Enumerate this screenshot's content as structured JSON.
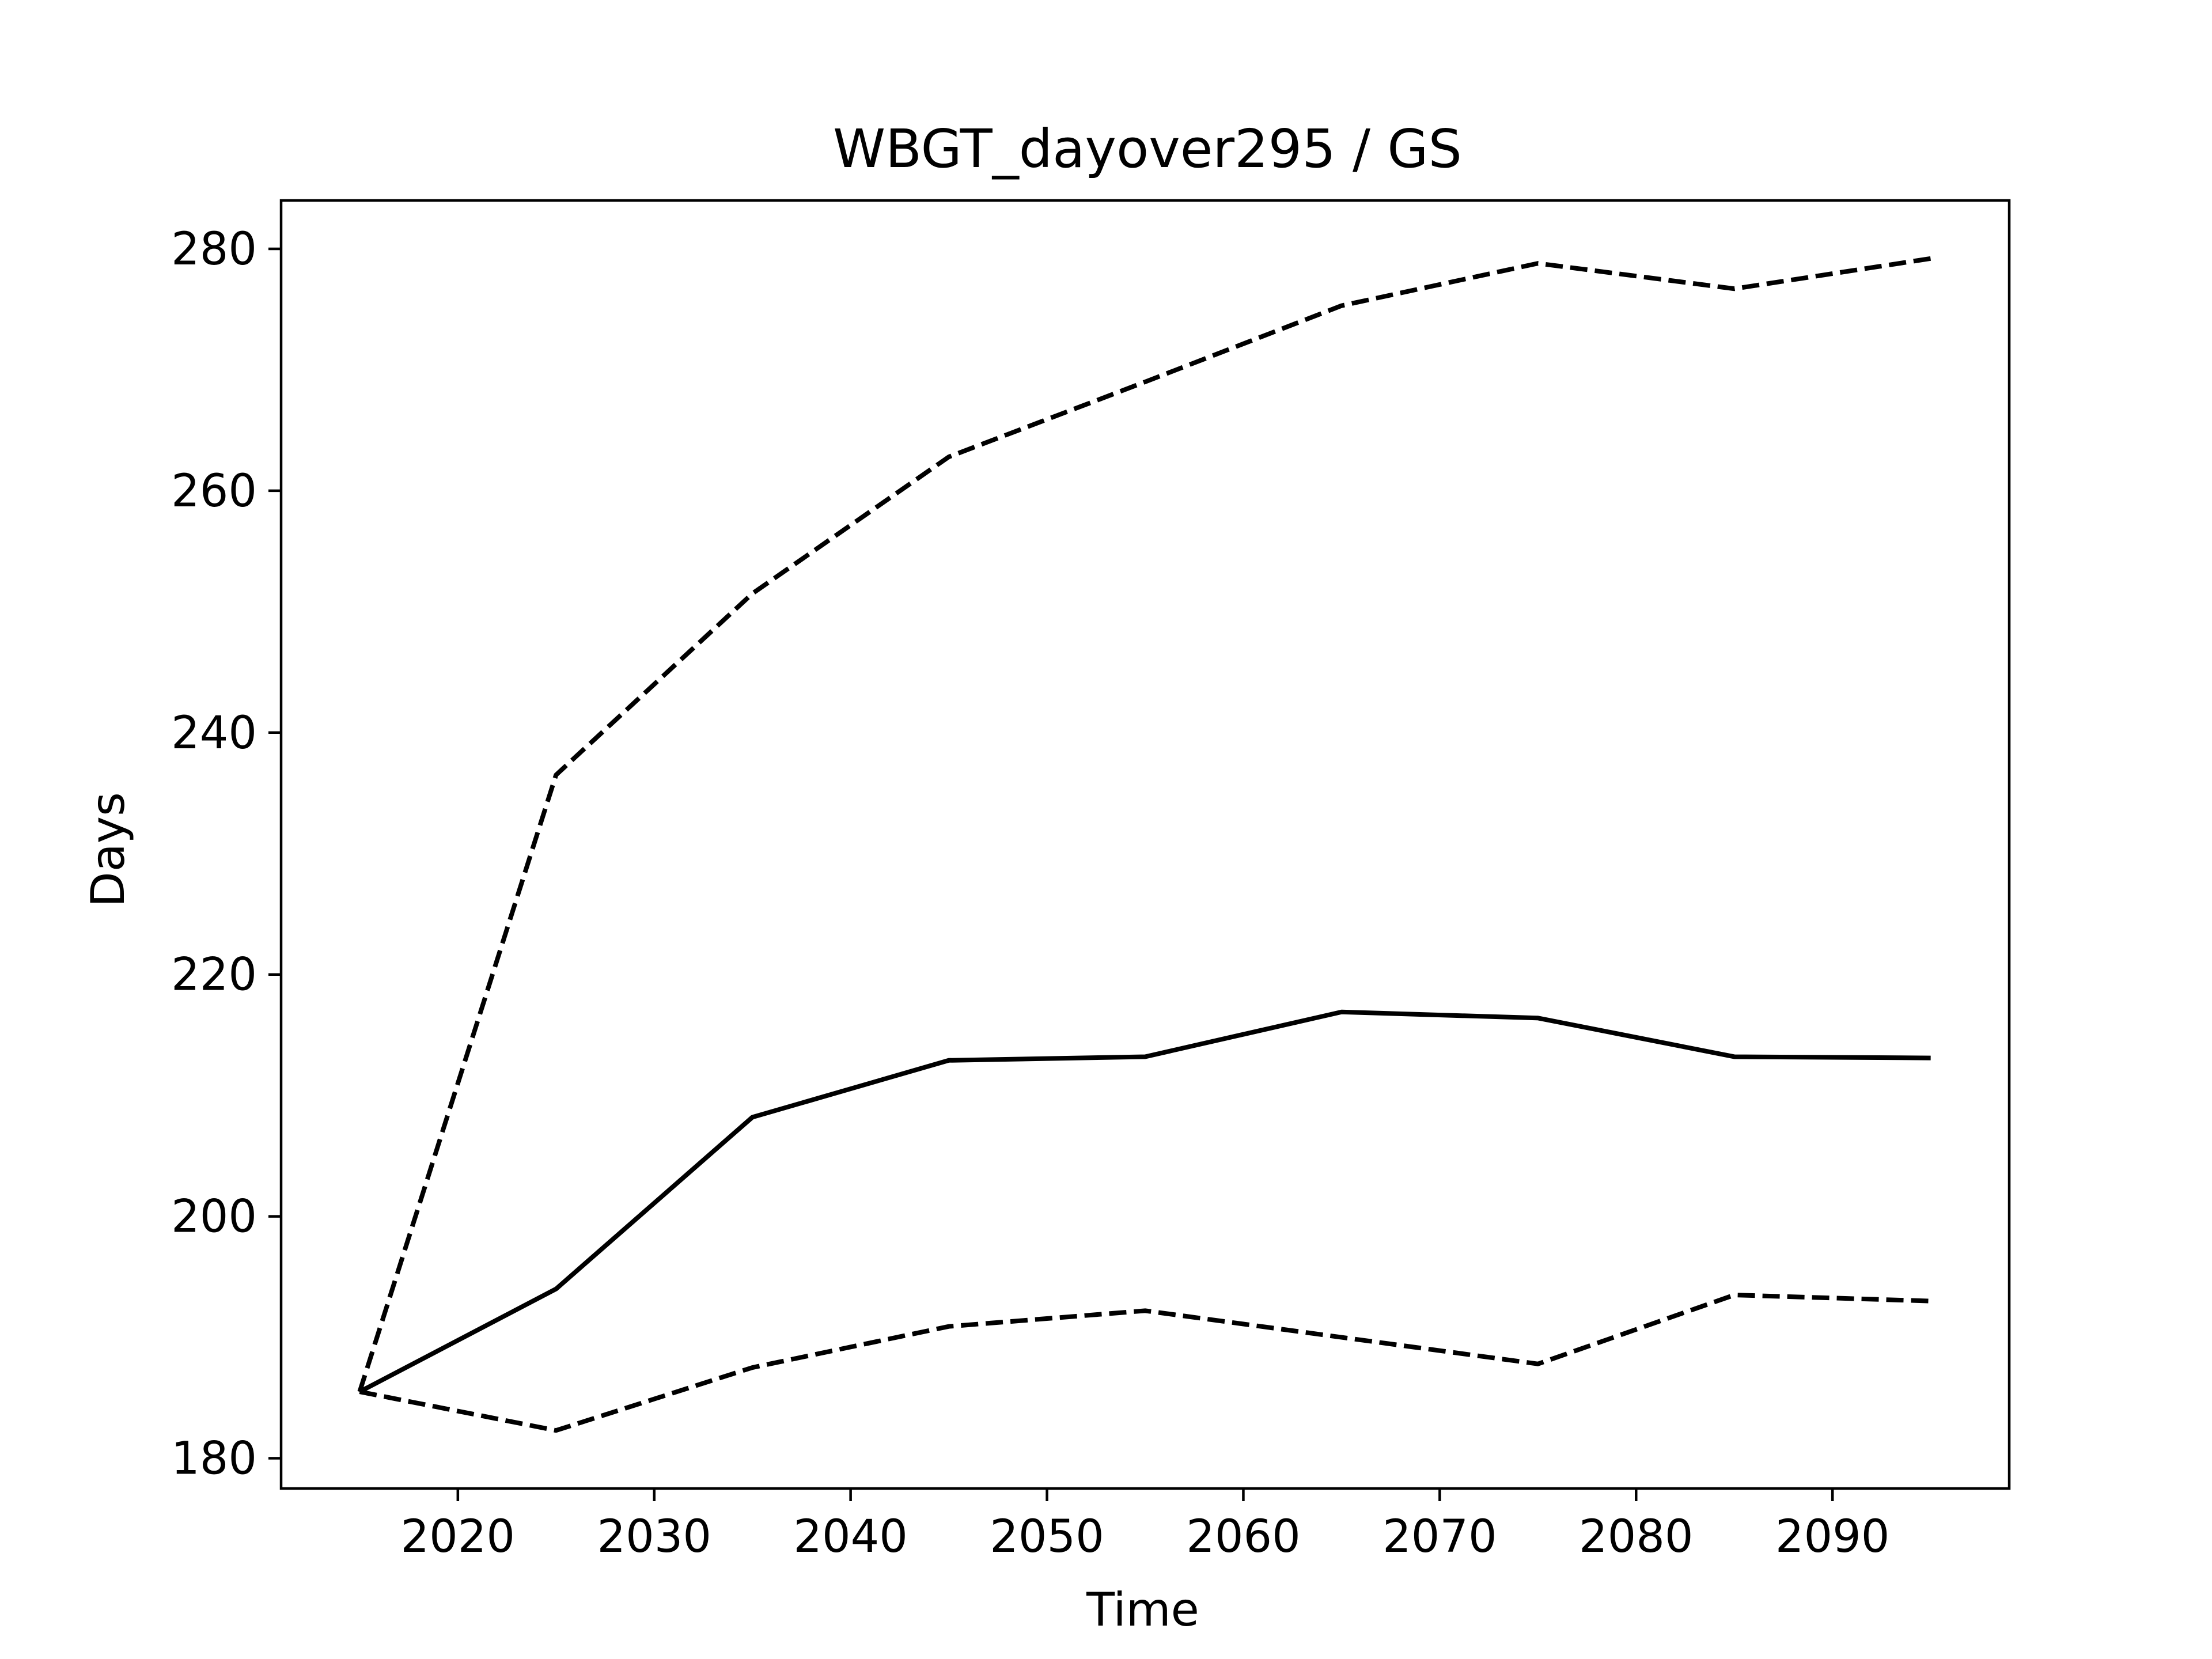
{
  "chart_data": {
    "type": "line",
    "title": "WBGT_dayover295 / GS",
    "xlabel": "Time",
    "ylabel": "Days",
    "xlim": [
      2011,
      2099
    ],
    "ylim": [
      177.5,
      284
    ],
    "x_ticks": [
      2020,
      2030,
      2040,
      2050,
      2060,
      2070,
      2080,
      2090
    ],
    "y_ticks": [
      180,
      200,
      220,
      240,
      260,
      280
    ],
    "grid": false,
    "legend": "none",
    "color": "#000000",
    "x": [
      2015,
      2025,
      2035,
      2045,
      2055,
      2065,
      2075,
      2085,
      2095
    ],
    "series": [
      {
        "style": "dashed",
        "values": [
          185.5,
          236.5,
          251.5,
          262.8,
          269.0,
          275.3,
          278.8,
          276.7,
          279.2
        ]
      },
      {
        "style": "solid",
        "values": [
          185.5,
          194.0,
          208.2,
          212.9,
          213.2,
          216.9,
          216.4,
          213.2,
          213.1
        ]
      },
      {
        "style": "dashed",
        "values": [
          185.5,
          182.3,
          187.5,
          190.9,
          192.2,
          190.0,
          187.8,
          193.5,
          193.0
        ]
      }
    ]
  }
}
